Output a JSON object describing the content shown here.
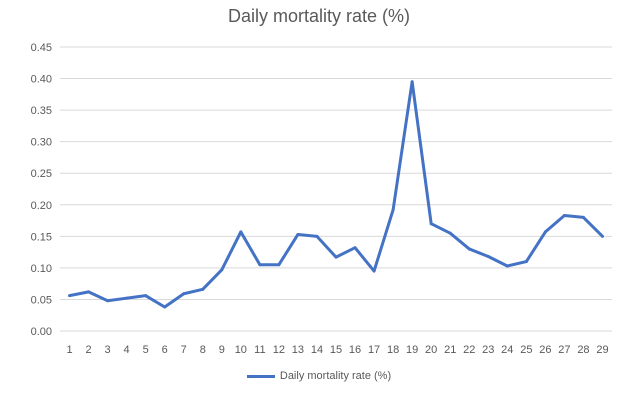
{
  "chart_data": {
    "type": "line",
    "title": "Daily mortality rate (%)",
    "xlabel": "",
    "ylabel": "",
    "x": [
      1,
      2,
      3,
      4,
      5,
      6,
      7,
      8,
      9,
      10,
      11,
      12,
      13,
      14,
      15,
      16,
      17,
      18,
      19,
      20,
      21,
      22,
      23,
      24,
      25,
      26,
      27,
      28,
      29
    ],
    "series": [
      {
        "name": "Daily mortality rate (%)",
        "color": "#4472C4",
        "values": [
          0.056,
          0.062,
          0.048,
          0.052,
          0.056,
          0.038,
          0.059,
          0.066,
          0.097,
          0.157,
          0.105,
          0.105,
          0.153,
          0.15,
          0.117,
          0.132,
          0.095,
          0.192,
          0.395,
          0.17,
          0.155,
          0.13,
          0.118,
          0.103,
          0.11,
          0.157,
          0.183,
          0.18,
          0.15
        ]
      }
    ],
    "ylim": [
      0,
      0.45
    ],
    "yticks": [
      "0.00",
      "0.05",
      "0.10",
      "0.15",
      "0.20",
      "0.25",
      "0.30",
      "0.35",
      "0.40",
      "0.45"
    ],
    "grid": true,
    "legend": "bottom"
  }
}
